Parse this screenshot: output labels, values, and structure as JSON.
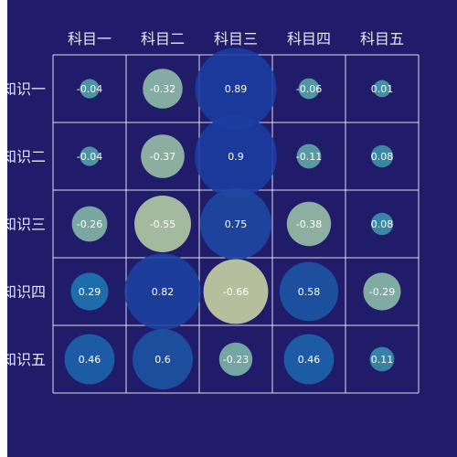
{
  "chart_data": {
    "type": "bubble-matrix",
    "columns": [
      "科目一",
      "科目二",
      "科目三",
      "科目四",
      "科目五"
    ],
    "rows": [
      "知识一",
      "知识二",
      "知识三",
      "知识四",
      "知识五"
    ],
    "values": [
      [
        -0.04,
        -0.32,
        0.89,
        -0.06,
        0.01
      ],
      [
        -0.04,
        -0.37,
        0.9,
        -0.11,
        0.08
      ],
      [
        -0.26,
        -0.55,
        0.75,
        -0.38,
        0.08
      ],
      [
        0.29,
        0.82,
        -0.66,
        0.58,
        -0.29
      ],
      [
        0.46,
        0.6,
        -0.23,
        0.46,
        0.11
      ]
    ],
    "size_encodes": "absolute value",
    "color_scale": {
      "-0.66": "#c9d6a4",
      "-0.3": "#8fbfaa",
      "0": "#4aa0a8",
      "0.3": "#1e77b4",
      "0.6": "#1d55a5",
      "0.9": "#1a3da0"
    },
    "background": "#211c6a",
    "grid": true
  }
}
